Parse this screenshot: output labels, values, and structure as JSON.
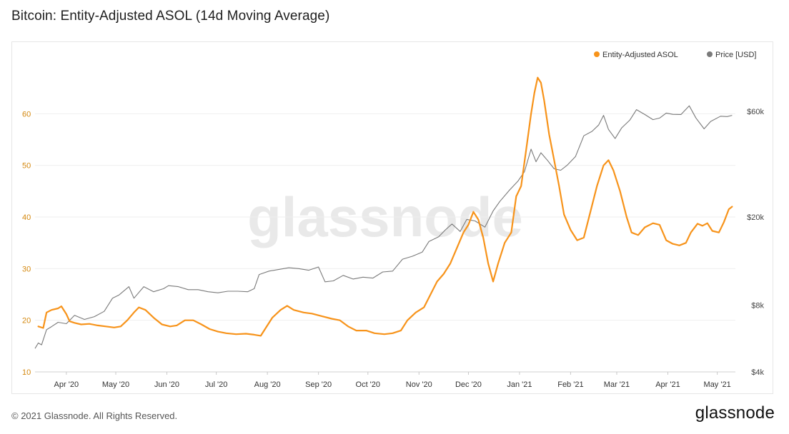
{
  "header": {
    "title": "Bitcoin: Entity-Adjusted ASOL (14d Moving Average)"
  },
  "footer": {
    "copyright": "© 2021 Glassnode. All Rights Reserved.",
    "logo_text": "glassnode"
  },
  "watermark": "glassnode",
  "colors": {
    "asol": "#f7931a",
    "price": "#7a7a7a",
    "left_axis": "#d4880f",
    "grid": "#efefef"
  },
  "chart_data": {
    "type": "line",
    "title": "Bitcoin: Entity-Adjusted ASOL (14d Moving Average)",
    "legend_position": "top-right",
    "grid": true,
    "x_ticks": [
      "Apr '20",
      "May '20",
      "Jun '20",
      "Jul '20",
      "Aug '20",
      "Sep '20",
      "Oct '20",
      "Nov '20",
      "Dec '20",
      "Jan '21",
      "Feb '21",
      "Mar '21",
      "Apr '21",
      "May '21"
    ],
    "y_left": {
      "ticks": [
        10,
        20,
        30,
        40,
        50,
        60
      ],
      "range": [
        10,
        70
      ]
    },
    "y_right": {
      "scale": "log",
      "ticks": [
        4000,
        8000,
        20000,
        60000
      ],
      "tick_labels": [
        "$4k",
        "$8k",
        "$20k",
        "$60k"
      ],
      "range": [
        4000,
        100000
      ]
    },
    "series": [
      {
        "name": "Entity-Adjusted ASOL",
        "axis": "left",
        "color": "#f7931a",
        "points": [
          [
            "2020-03-15",
            18.8
          ],
          [
            "2020-03-18",
            18.5
          ],
          [
            "2020-03-20",
            21.5
          ],
          [
            "2020-03-23",
            22.0
          ],
          [
            "2020-03-27",
            22.3
          ],
          [
            "2020-03-29",
            22.7
          ],
          [
            "2020-04-01",
            21.2
          ],
          [
            "2020-04-03",
            19.8
          ],
          [
            "2020-04-06",
            19.5
          ],
          [
            "2020-04-10",
            19.2
          ],
          [
            "2020-04-15",
            19.3
          ],
          [
            "2020-04-20",
            19.0
          ],
          [
            "2020-04-25",
            18.8
          ],
          [
            "2020-04-30",
            18.6
          ],
          [
            "2020-05-04",
            18.8
          ],
          [
            "2020-05-08",
            20.0
          ],
          [
            "2020-05-12",
            21.5
          ],
          [
            "2020-05-15",
            22.5
          ],
          [
            "2020-05-19",
            22.0
          ],
          [
            "2020-05-24",
            20.5
          ],
          [
            "2020-05-29",
            19.2
          ],
          [
            "2020-06-03",
            18.8
          ],
          [
            "2020-06-07",
            19.0
          ],
          [
            "2020-06-12",
            20.0
          ],
          [
            "2020-06-17",
            20.0
          ],
          [
            "2020-06-22",
            19.2
          ],
          [
            "2020-06-27",
            18.3
          ],
          [
            "2020-07-02",
            17.8
          ],
          [
            "2020-07-07",
            17.5
          ],
          [
            "2020-07-13",
            17.3
          ],
          [
            "2020-07-19",
            17.4
          ],
          [
            "2020-07-24",
            17.2
          ],
          [
            "2020-07-28",
            17.0
          ],
          [
            "2020-07-31",
            18.5
          ],
          [
            "2020-08-04",
            20.5
          ],
          [
            "2020-08-09",
            22.0
          ],
          [
            "2020-08-13",
            22.8
          ],
          [
            "2020-08-17",
            22.0
          ],
          [
            "2020-08-23",
            21.5
          ],
          [
            "2020-08-28",
            21.3
          ],
          [
            "2020-09-03",
            20.8
          ],
          [
            "2020-09-09",
            20.3
          ],
          [
            "2020-09-14",
            20.0
          ],
          [
            "2020-09-19",
            18.8
          ],
          [
            "2020-09-24",
            18.0
          ],
          [
            "2020-09-30",
            18.0
          ],
          [
            "2020-10-05",
            17.5
          ],
          [
            "2020-10-11",
            17.3
          ],
          [
            "2020-10-16",
            17.5
          ],
          [
            "2020-10-21",
            18.0
          ],
          [
            "2020-10-25",
            20.0
          ],
          [
            "2020-10-30",
            21.5
          ],
          [
            "2020-11-04",
            22.5
          ],
          [
            "2020-11-08",
            25.0
          ],
          [
            "2020-11-12",
            27.5
          ],
          [
            "2020-11-16",
            29.0
          ],
          [
            "2020-11-20",
            31.0
          ],
          [
            "2020-11-24",
            34.0
          ],
          [
            "2020-11-28",
            37.0
          ],
          [
            "2020-12-01",
            38.5
          ],
          [
            "2020-12-04",
            41.0
          ],
          [
            "2020-12-07",
            39.5
          ],
          [
            "2020-12-10",
            36.0
          ],
          [
            "2020-12-13",
            31.0
          ],
          [
            "2020-12-16",
            27.5
          ],
          [
            "2020-12-19",
            31.0
          ],
          [
            "2020-12-23",
            35.0
          ],
          [
            "2020-12-27",
            37.0
          ],
          [
            "2020-12-30",
            44.0
          ],
          [
            "2021-01-02",
            46.0
          ],
          [
            "2021-01-05",
            53.0
          ],
          [
            "2021-01-08",
            60.0
          ],
          [
            "2021-01-10",
            64.0
          ],
          [
            "2021-01-12",
            67.0
          ],
          [
            "2021-01-14",
            66.0
          ],
          [
            "2021-01-16",
            62.5
          ],
          [
            "2021-01-19",
            56.0
          ],
          [
            "2021-01-22",
            51.0
          ],
          [
            "2021-01-25",
            46.0
          ],
          [
            "2021-01-28",
            40.5
          ],
          [
            "2021-02-01",
            37.5
          ],
          [
            "2021-02-05",
            35.5
          ],
          [
            "2021-02-09",
            36.0
          ],
          [
            "2021-02-13",
            41.0
          ],
          [
            "2021-02-17",
            46.0
          ],
          [
            "2021-02-21",
            50.0
          ],
          [
            "2021-02-24",
            51.0
          ],
          [
            "2021-02-27",
            49.0
          ],
          [
            "2021-03-03",
            45.0
          ],
          [
            "2021-03-07",
            40.0
          ],
          [
            "2021-03-10",
            37.0
          ],
          [
            "2021-03-14",
            36.5
          ],
          [
            "2021-03-18",
            38.0
          ],
          [
            "2021-03-23",
            38.8
          ],
          [
            "2021-03-27",
            38.5
          ],
          [
            "2021-03-31",
            35.5
          ],
          [
            "2021-04-04",
            34.8
          ],
          [
            "2021-04-08",
            34.5
          ],
          [
            "2021-04-12",
            35.0
          ],
          [
            "2021-04-15",
            37.0
          ],
          [
            "2021-04-19",
            38.7
          ],
          [
            "2021-04-22",
            38.3
          ],
          [
            "2021-04-25",
            38.8
          ],
          [
            "2021-04-28",
            37.3
          ],
          [
            "2021-05-02",
            37.0
          ],
          [
            "2021-05-05",
            39.0
          ],
          [
            "2021-05-08",
            41.5
          ],
          [
            "2021-05-10",
            42.0
          ]
        ]
      },
      {
        "name": "Price [USD]",
        "axis": "right",
        "color": "#7a7a7a",
        "points": [
          [
            "2020-03-13",
            5100
          ],
          [
            "2020-03-15",
            5400
          ],
          [
            "2020-03-17",
            5300
          ],
          [
            "2020-03-20",
            6200
          ],
          [
            "2020-03-23",
            6400
          ],
          [
            "2020-03-27",
            6700
          ],
          [
            "2020-04-01",
            6600
          ],
          [
            "2020-04-06",
            7200
          ],
          [
            "2020-04-12",
            6900
          ],
          [
            "2020-04-18",
            7100
          ],
          [
            "2020-04-24",
            7500
          ],
          [
            "2020-04-29",
            8600
          ],
          [
            "2020-05-03",
            8900
          ],
          [
            "2020-05-09",
            9700
          ],
          [
            "2020-05-12",
            8600
          ],
          [
            "2020-05-18",
            9700
          ],
          [
            "2020-05-24",
            9200
          ],
          [
            "2020-05-30",
            9500
          ],
          [
            "2020-06-02",
            9800
          ],
          [
            "2020-06-08",
            9700
          ],
          [
            "2020-06-14",
            9400
          ],
          [
            "2020-06-20",
            9400
          ],
          [
            "2020-06-26",
            9200
          ],
          [
            "2020-07-02",
            9100
          ],
          [
            "2020-07-08",
            9250
          ],
          [
            "2020-07-14",
            9250
          ],
          [
            "2020-07-20",
            9200
          ],
          [
            "2020-07-24",
            9500
          ],
          [
            "2020-07-27",
            11000
          ],
          [
            "2020-08-02",
            11400
          ],
          [
            "2020-08-08",
            11600
          ],
          [
            "2020-08-14",
            11800
          ],
          [
            "2020-08-20",
            11700
          ],
          [
            "2020-08-26",
            11500
          ],
          [
            "2020-09-01",
            11900
          ],
          [
            "2020-09-05",
            10200
          ],
          [
            "2020-09-10",
            10300
          ],
          [
            "2020-09-16",
            10900
          ],
          [
            "2020-09-22",
            10500
          ],
          [
            "2020-09-28",
            10700
          ],
          [
            "2020-10-04",
            10600
          ],
          [
            "2020-10-10",
            11300
          ],
          [
            "2020-10-16",
            11400
          ],
          [
            "2020-10-22",
            12900
          ],
          [
            "2020-10-28",
            13300
          ],
          [
            "2020-11-03",
            13900
          ],
          [
            "2020-11-07",
            15500
          ],
          [
            "2020-11-13",
            16300
          ],
          [
            "2020-11-17",
            17500
          ],
          [
            "2020-11-21",
            18600
          ],
          [
            "2020-11-26",
            17200
          ],
          [
            "2020-11-30",
            19500
          ],
          [
            "2020-12-05",
            19200
          ],
          [
            "2020-12-11",
            18000
          ],
          [
            "2020-12-16",
            21300
          ],
          [
            "2020-12-20",
            23500
          ],
          [
            "2020-12-26",
            26500
          ],
          [
            "2020-12-31",
            29000
          ],
          [
            "2021-01-04",
            32000
          ],
          [
            "2021-01-08",
            40500
          ],
          [
            "2021-01-11",
            35500
          ],
          [
            "2021-01-14",
            39000
          ],
          [
            "2021-01-18",
            36000
          ],
          [
            "2021-01-22",
            33000
          ],
          [
            "2021-01-26",
            32500
          ],
          [
            "2021-01-30",
            34300
          ],
          [
            "2021-02-04",
            37500
          ],
          [
            "2021-02-09",
            46500
          ],
          [
            "2021-02-14",
            48700
          ],
          [
            "2021-02-18",
            52000
          ],
          [
            "2021-02-21",
            57500
          ],
          [
            "2021-02-24",
            49700
          ],
          [
            "2021-02-28",
            45200
          ],
          [
            "2021-03-04",
            50500
          ],
          [
            "2021-03-09",
            54800
          ],
          [
            "2021-03-13",
            61000
          ],
          [
            "2021-03-18",
            58000
          ],
          [
            "2021-03-23",
            55000
          ],
          [
            "2021-03-27",
            55900
          ],
          [
            "2021-03-31",
            58900
          ],
          [
            "2021-04-04",
            58100
          ],
          [
            "2021-04-09",
            58000
          ],
          [
            "2021-04-14",
            63500
          ],
          [
            "2021-04-18",
            56000
          ],
          [
            "2021-04-23",
            50000
          ],
          [
            "2021-04-27",
            54000
          ],
          [
            "2021-05-03",
            57000
          ],
          [
            "2021-05-07",
            56800
          ],
          [
            "2021-05-10",
            57500
          ]
        ]
      }
    ]
  }
}
